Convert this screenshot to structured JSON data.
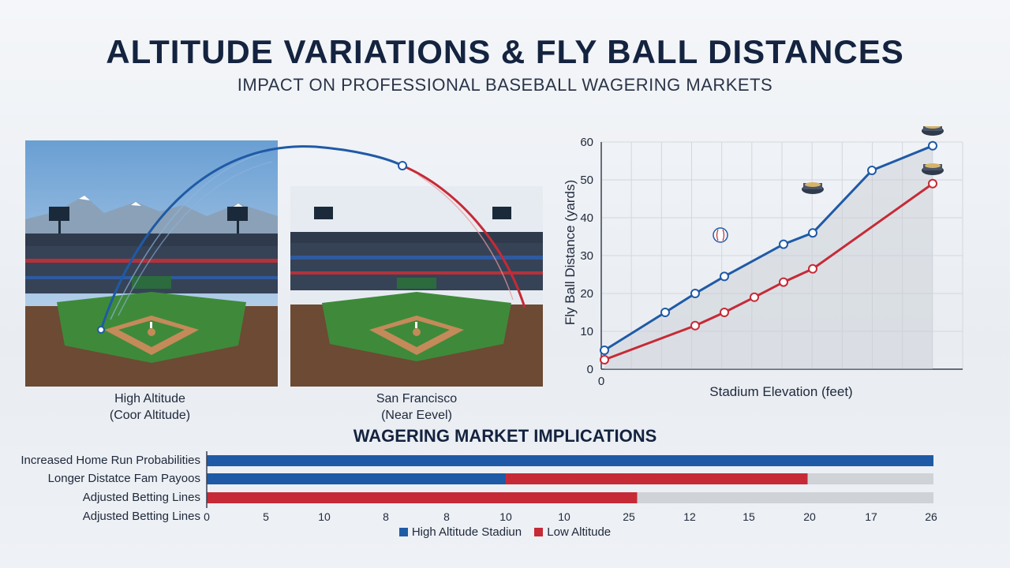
{
  "title": "ALTITUDE VARIATIONS & FLY BALL DISTANCES",
  "subtitle": "IMPACT ON PROFESSIONAL BASEBALL WAGERING MARKETS",
  "scenes": {
    "left": {
      "caption_line1": "High Altitude",
      "caption_line2": "(Coor Altitude)"
    },
    "right": {
      "caption_line1": "San Francisco",
      "caption_line2": "(Near Eevel)"
    }
  },
  "colors": {
    "blue": "#1f5aa6",
    "red": "#c62a36",
    "gray": "#cfd2d6"
  },
  "chart_data": [
    {
      "type": "line",
      "xlabel": "Stadium Elevation (feet)",
      "ylabel": "Fly Ball Distance (yards)",
      "ylim": [
        0,
        60
      ],
      "yticks": [
        "0",
        "10",
        "20",
        "30",
        "40",
        "50",
        "60"
      ],
      "x_tick_label": "0",
      "grid": true,
      "series": [
        {
          "color": "blue",
          "values": [
            5,
            15,
            20,
            24.5,
            33,
            36,
            52.5,
            59
          ]
        },
        {
          "color": "red",
          "values": [
            2.5,
            11.5,
            15,
            19,
            23,
            26.5,
            49
          ]
        }
      ]
    },
    {
      "type": "bar",
      "title": "WAGERING MARKET IMPLICATIONS",
      "orientation": "horizontal",
      "categories": [
        "Increased Home Run Probabilities",
        "Longer Distatce Fam Payoos",
        "Adjusted Betting Lines"
      ],
      "axis_title": "Adjusted Betting Lines",
      "tick_labels": [
        "0",
        "5",
        "10",
        "8",
        "8",
        "10",
        "10",
        "25",
        "12",
        "15",
        "20",
        "17",
        "26"
      ],
      "xlim": [
        0,
        26
      ],
      "bars": [
        {
          "segments": [
            {
              "color": "blue",
              "from": 0,
              "to": 26
            }
          ]
        },
        {
          "segments": [
            {
              "color": "blue",
              "from": 0,
              "to": 10.7
            },
            {
              "color": "red",
              "from": 10.7,
              "to": 21.5
            },
            {
              "color": "gray",
              "from": 21.5,
              "to": 26
            }
          ]
        },
        {
          "segments": [
            {
              "color": "red",
              "from": 0,
              "to": 15.4
            },
            {
              "color": "gray",
              "from": 15.4,
              "to": 26
            }
          ]
        }
      ],
      "legend": [
        {
          "label": "High Altitude Stadiun",
          "color": "blue"
        },
        {
          "label": "Low Altitude",
          "color": "red"
        }
      ]
    }
  ]
}
